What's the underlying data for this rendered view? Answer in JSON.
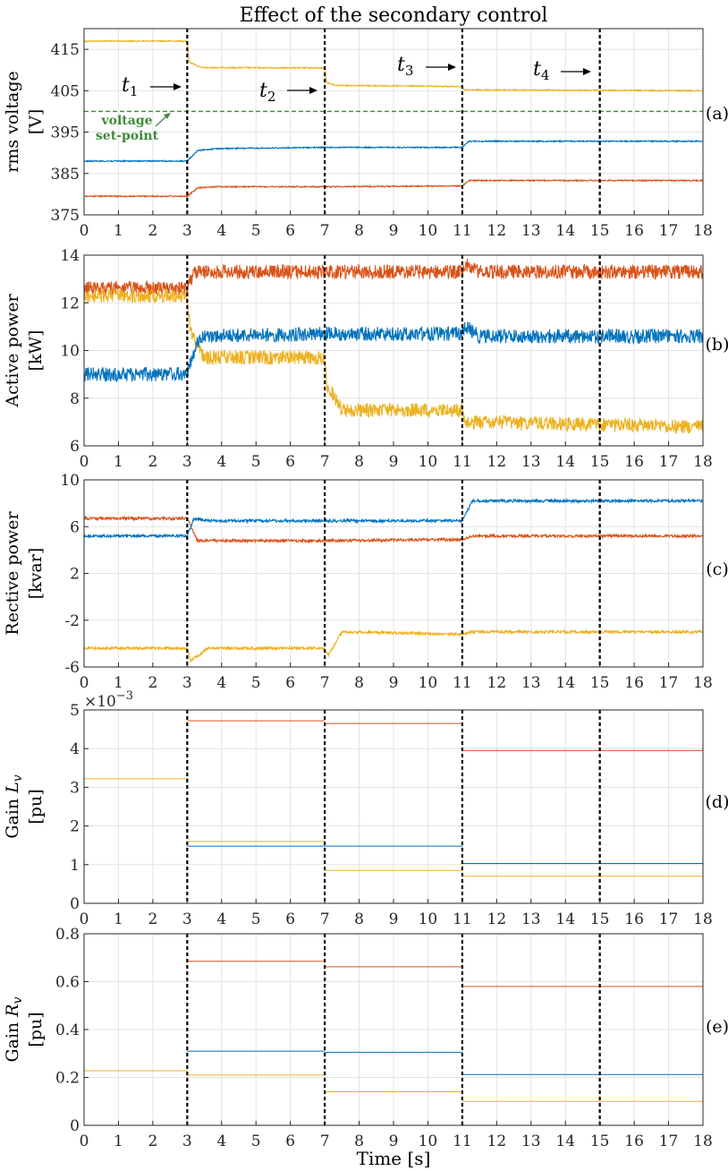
{
  "chart_data": {
    "type": "line",
    "title": "Effect of the secondary control",
    "xlabel": "Time [s]",
    "xlim": [
      0,
      18
    ],
    "xticks": [
      0,
      1,
      2,
      3,
      4,
      5,
      6,
      7,
      8,
      9,
      10,
      11,
      12,
      13,
      14,
      15,
      16,
      17,
      18
    ],
    "event_times": [
      3,
      7,
      11,
      15
    ],
    "colors": {
      "blue": "#0072BD",
      "orange": "#D95319",
      "yellow": "#EDB120",
      "setpoint": "#3f8a3a"
    },
    "panels": [
      {
        "id": "a",
        "panel_label": "(a)",
        "ylabel": [
          "rms voltage",
          "[V]"
        ],
        "ylim": [
          375,
          420
        ],
        "yticks": [
          375,
          385,
          395,
          405,
          415
        ],
        "yticklabels": [
          "375",
          "385",
          "395",
          "405",
          "415"
        ],
        "noise": 0.15,
        "series": [
          {
            "name": "yellow",
            "color": "#EDB120",
            "knots": [
              [
                0,
                417
              ],
              [
                3,
                417
              ],
              [
                3.05,
                412
              ],
              [
                3.4,
                410.6
              ],
              [
                7,
                410.5
              ],
              [
                7.05,
                407
              ],
              [
                7.3,
                406.3
              ],
              [
                11,
                406
              ],
              [
                11.05,
                405.2
              ],
              [
                18,
                405
              ]
            ]
          },
          {
            "name": "blue",
            "color": "#0072BD",
            "knots": [
              [
                0,
                388
              ],
              [
                3,
                388
              ],
              [
                3.3,
                390.5
              ],
              [
                3.8,
                391
              ],
              [
                7,
                391.3
              ],
              [
                11,
                391.3
              ],
              [
                11.2,
                392.8
              ],
              [
                18,
                392.8
              ]
            ]
          },
          {
            "name": "orange",
            "color": "#D95319",
            "knots": [
              [
                0,
                379.5
              ],
              [
                3,
                379.5
              ],
              [
                3.3,
                381.5
              ],
              [
                3.8,
                381.8
              ],
              [
                7,
                381.8
              ],
              [
                11,
                382
              ],
              [
                11.2,
                383.3
              ],
              [
                18,
                383.3
              ]
            ]
          }
        ],
        "setpoint": {
          "value": 400,
          "color": "#3f8a3a",
          "label": [
            "voltage",
            "set-point"
          ]
        },
        "annotations": [
          {
            "label": "t",
            "sub": "1",
            "time": 3
          },
          {
            "label": "t",
            "sub": "2",
            "time": 7
          },
          {
            "label": "t",
            "sub": "3",
            "time": 11
          },
          {
            "label": "t",
            "sub": "4",
            "time": 15
          }
        ]
      },
      {
        "id": "b",
        "panel_label": "(b)",
        "ylabel": [
          "Active power",
          "[kW]"
        ],
        "ylim": [
          6,
          14
        ],
        "yticks": [
          6,
          8,
          10,
          12,
          14
        ],
        "yticklabels": [
          "6",
          "8",
          "10",
          "12",
          "14"
        ],
        "noise": 0.3,
        "series": [
          {
            "name": "orange",
            "color": "#D95319",
            "knots": [
              [
                0,
                12.6
              ],
              [
                3,
                12.6
              ],
              [
                3.2,
                13.3
              ],
              [
                7,
                13.3
              ],
              [
                11,
                13.3
              ],
              [
                11.1,
                13.6
              ],
              [
                11.5,
                13.3
              ],
              [
                18,
                13.3
              ]
            ]
          },
          {
            "name": "yellow",
            "color": "#EDB120",
            "knots": [
              [
                0,
                12.3
              ],
              [
                3,
                12.3
              ],
              [
                3.1,
                10.8
              ],
              [
                3.5,
                9.7
              ],
              [
                7,
                9.7
              ],
              [
                7.05,
                8.6
              ],
              [
                7.5,
                7.5
              ],
              [
                11,
                7.5
              ],
              [
                11.05,
                7.0
              ],
              [
                18,
                6.8
              ]
            ]
          },
          {
            "name": "blue",
            "color": "#0072BD",
            "knots": [
              [
                0,
                9.0
              ],
              [
                3,
                9.0
              ],
              [
                3.2,
                10.0
              ],
              [
                3.4,
                10.6
              ],
              [
                7,
                10.7
              ],
              [
                11,
                10.7
              ],
              [
                11.1,
                11.0
              ],
              [
                11.5,
                10.6
              ],
              [
                18,
                10.6
              ]
            ]
          }
        ]
      },
      {
        "id": "c",
        "panel_label": "(c)",
        "ylabel": [
          "Rective power",
          "[kvar]"
        ],
        "ylim": [
          -6,
          10
        ],
        "yticks": [
          -6,
          -2,
          2,
          6,
          10
        ],
        "yticklabels": [
          "-6",
          "-2",
          "2",
          "6",
          "10"
        ],
        "noise": 0.12,
        "series": [
          {
            "name": "orange",
            "color": "#D95319",
            "knots": [
              [
                0,
                6.7
              ],
              [
                3,
                6.7
              ],
              [
                3.3,
                4.8
              ],
              [
                7,
                4.8
              ],
              [
                11,
                4.9
              ],
              [
                11.3,
                5.2
              ],
              [
                18,
                5.2
              ]
            ]
          },
          {
            "name": "blue",
            "color": "#0072BD",
            "knots": [
              [
                0,
                5.2
              ],
              [
                3,
                5.2
              ],
              [
                3.2,
                6.7
              ],
              [
                3.6,
                6.5
              ],
              [
                7,
                6.5
              ],
              [
                11,
                6.5
              ],
              [
                11.3,
                8.2
              ],
              [
                18,
                8.2
              ]
            ]
          },
          {
            "name": "yellow",
            "color": "#EDB120",
            "knots": [
              [
                0,
                -4.4
              ],
              [
                3,
                -4.4
              ],
              [
                3.1,
                -5.5
              ],
              [
                3.6,
                -4.4
              ],
              [
                7,
                -4.4
              ],
              [
                7.1,
                -5.0
              ],
              [
                7.5,
                -3.0
              ],
              [
                11,
                -3.2
              ],
              [
                11.3,
                -3.0
              ],
              [
                18,
                -3.0
              ]
            ]
          }
        ]
      },
      {
        "id": "d",
        "panel_label": "(d)",
        "ylabel": [
          "Gain Lv",
          "[pu]"
        ],
        "ylabel_main": "Gain ",
        "ylabel_var": "L",
        "ylabel_sub": "v",
        "ylim": [
          0,
          5
        ],
        "yticks": [
          0,
          1,
          2,
          3,
          4,
          5
        ],
        "yticklabels": [
          "0",
          "1",
          "2",
          "3",
          "4",
          "5"
        ],
        "multiplier": "×10",
        "multiplier_exp": "−3",
        "steps": [
          {
            "color": "#D95319",
            "segments": [
              [
                3,
                7,
                4.72
              ],
              [
                7,
                11,
                4.65
              ],
              [
                11,
                18,
                3.95
              ]
            ]
          },
          {
            "color": "#0072BD",
            "segments": [
              [
                3,
                7,
                1.48
              ],
              [
                7,
                11,
                1.48
              ],
              [
                11,
                18,
                1.03
              ]
            ]
          },
          {
            "color": "#EDB120",
            "segments": [
              [
                0,
                3,
                3.22
              ],
              [
                3,
                7,
                1.6
              ],
              [
                7,
                11,
                0.85
              ],
              [
                11,
                18,
                0.7
              ]
            ]
          }
        ]
      },
      {
        "id": "e",
        "panel_label": "(e)",
        "ylabel": [
          "Gain Rv",
          "[pu]"
        ],
        "ylabel_main": "Gain ",
        "ylabel_var": "R",
        "ylabel_sub": "v",
        "ylim": [
          0,
          0.8
        ],
        "yticks": [
          0,
          0.2,
          0.4,
          0.6,
          0.8
        ],
        "yticklabels": [
          "0",
          "0.2",
          "0.4",
          "0.6",
          "0.8"
        ],
        "steps": [
          {
            "color": "#D95319",
            "segments": [
              [
                3,
                7,
                0.685
              ],
              [
                7,
                11,
                0.662
              ],
              [
                11,
                18,
                0.58
              ]
            ]
          },
          {
            "color": "#0072BD",
            "segments": [
              [
                3,
                7,
                0.31
              ],
              [
                7,
                11,
                0.305
              ],
              [
                11,
                18,
                0.212
              ]
            ]
          },
          {
            "color": "#EDB120",
            "segments": [
              [
                0,
                3,
                0.228
              ],
              [
                3,
                7,
                0.21
              ],
              [
                7,
                11,
                0.14
              ],
              [
                11,
                18,
                0.1
              ]
            ]
          }
        ]
      }
    ]
  }
}
